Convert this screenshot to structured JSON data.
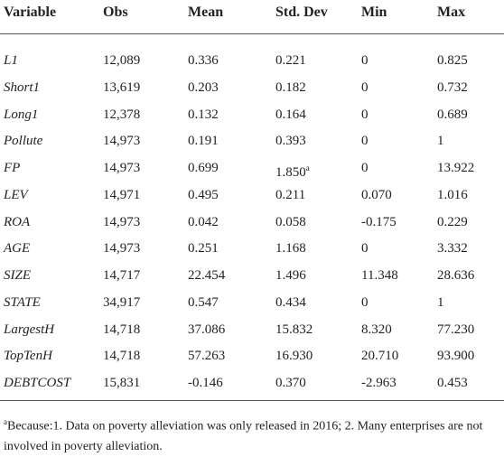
{
  "table": {
    "header": [
      "Variable",
      "Obs",
      "Mean",
      "Std. Dev",
      "Min",
      "Max"
    ],
    "rows": [
      [
        "L1",
        "12,089",
        "0.336",
        "0.221",
        "0",
        "0.825"
      ],
      [
        "Short1",
        "13,619",
        "0.203",
        "0.182",
        "0",
        "0.732"
      ],
      [
        "Long1",
        "12,378",
        "0.132",
        "0.164",
        "0",
        "0.689"
      ],
      [
        "Pollute",
        "14,973",
        "0.191",
        "0.393",
        "0",
        "1"
      ],
      [
        "FP",
        "14,973",
        "0.699",
        {
          "text": "1.850",
          "sup": "a"
        },
        "0",
        "13.922"
      ],
      [
        "LEV",
        "14,971",
        "0.495",
        "0.211",
        "0.070",
        "1.016"
      ],
      [
        "ROA",
        "14,973",
        "0.042",
        "0.058",
        "-0.175",
        "0.229"
      ],
      [
        "AGE",
        "14,973",
        "0.251",
        "1.168",
        "0",
        "3.332"
      ],
      [
        "SIZE",
        "14,717",
        "22.454",
        "1.496",
        "11.348",
        "28.636"
      ],
      [
        "STATE",
        "34,917",
        "0.547",
        "0.434",
        "0",
        "1"
      ],
      [
        "LargestH",
        "14,718",
        "37.086",
        "15.832",
        "8.320",
        "77.230"
      ],
      [
        "TopTenH",
        "14,718",
        "57.263",
        "16.930",
        "20.710",
        "93.900"
      ],
      [
        "DEBTCOST",
        "15,831",
        "-0.146",
        "0.370",
        "-2.963",
        "0.453"
      ]
    ]
  },
  "footnote": {
    "mark": "a",
    "text": "Because:1. Data on poverty alleviation was only released in 2016; 2. Many enterprises are not involved in poverty alleviation."
  }
}
